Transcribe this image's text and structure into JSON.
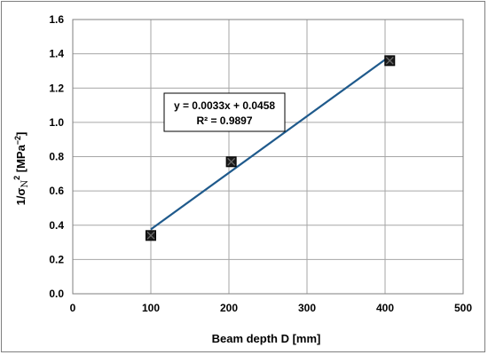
{
  "chart_data": {
    "type": "scatter",
    "xlabel": "Beam depth D [mm]",
    "ylabel_prefix": "1/σ",
    "ylabel_sub": "N",
    "ylabel_sup": "2",
    "ylabel_unit_open": " [MPa",
    "ylabel_unit_sup": "−2",
    "ylabel_unit_close": "]",
    "xlim": [
      0,
      500
    ],
    "ylim": [
      0,
      1.6
    ],
    "xticks": [
      "0",
      "100",
      "200",
      "300",
      "400",
      "500"
    ],
    "yticks": [
      "0.0",
      "0.2",
      "0.4",
      "0.6",
      "0.8",
      "1.0",
      "1.2",
      "1.4",
      "1.6"
    ],
    "grid": true,
    "series": [
      {
        "x": [
          100,
          203,
          406
        ],
        "y": [
          0.34,
          0.77,
          1.36
        ],
        "marker": "x-square",
        "color": "#000000"
      }
    ],
    "trendline": {
      "slope": 0.0033,
      "intercept": 0.0458,
      "x_range": [
        100,
        406
      ],
      "color": "#1f5a8c",
      "equation": "y = 0.0033x + 0.0458",
      "r_squared": "R² = 0.9897"
    }
  }
}
